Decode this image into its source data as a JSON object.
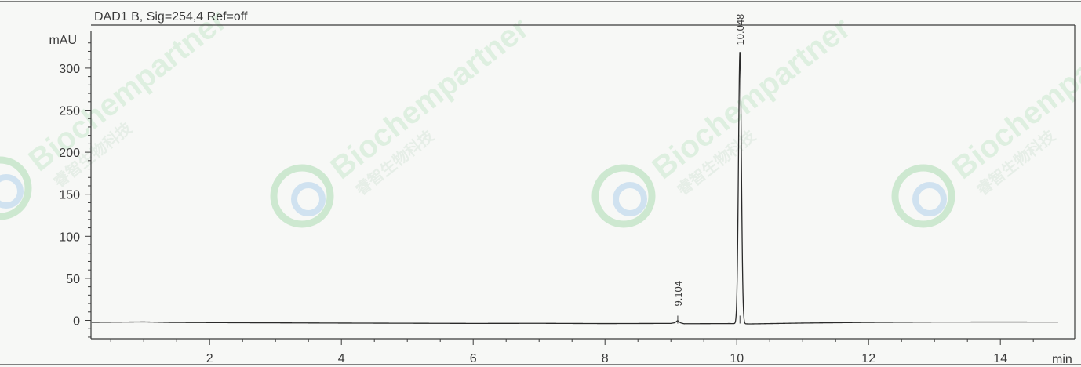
{
  "chart_data": {
    "type": "line",
    "title": "DAD1 B, Sig=254,4 Ref=off",
    "ylabel": "mAU",
    "xlabel": "min",
    "xlim": [
      0,
      14.9
    ],
    "ylim": [
      -20,
      340
    ],
    "x_ticks": [
      2,
      4,
      6,
      8,
      10,
      12,
      14
    ],
    "y_ticks": [
      0,
      50,
      100,
      150,
      200,
      250,
      300
    ],
    "grid": false,
    "baseline": [
      [
        0,
        -2.5
      ],
      [
        0.4,
        -2.2
      ],
      [
        1.0,
        -1.8
      ],
      [
        1.4,
        -2.4
      ],
      [
        2.5,
        -2.8
      ],
      [
        4.0,
        -3.2
      ],
      [
        6.0,
        -3.6
      ],
      [
        7.0,
        -3.5
      ],
      [
        8.0,
        -3.8
      ],
      [
        9.0,
        -3.6
      ],
      [
        9.1,
        -2.2
      ],
      [
        9.2,
        -4.0
      ],
      [
        9.9,
        -3.8
      ],
      [
        10.2,
        -4.2
      ],
      [
        11.0,
        -3.2
      ],
      [
        12.0,
        -2.4
      ],
      [
        13.0,
        -2.0
      ],
      [
        14.0,
        -1.9
      ],
      [
        14.9,
        -2.0
      ]
    ],
    "peaks": [
      {
        "rt": 9.104,
        "label": "9.104",
        "height": 1.8,
        "width": 0.02
      },
      {
        "rt": 10.048,
        "label": "10.048",
        "height": 324,
        "width": 0.022
      }
    ]
  },
  "watermark": {
    "brand": "Biochempartner",
    "sub": "睿智生物科技",
    "colors": {
      "green": "#bfe3c3",
      "blue": "#c3dbee"
    }
  }
}
